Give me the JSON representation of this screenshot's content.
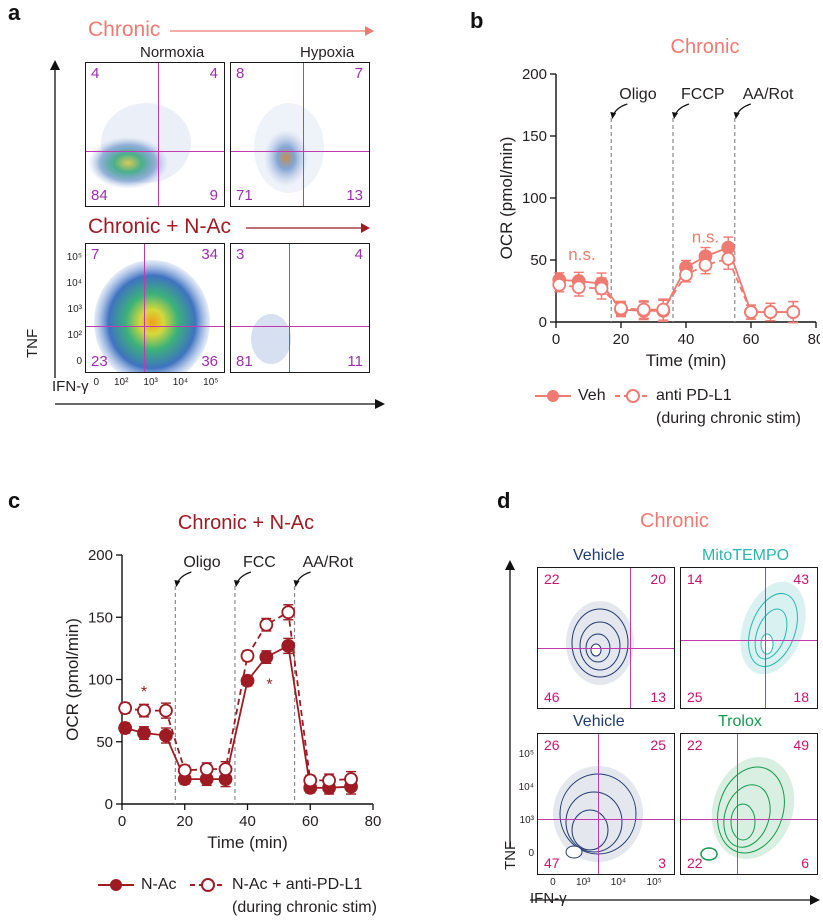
{
  "panels": {
    "a": {
      "letter": "a",
      "title_top": "Chronic",
      "title_bottom": "Chronic + N-Ac",
      "col_normoxia": "Normoxia",
      "col_hypoxia": "Hypoxia",
      "y_axis": "TNF",
      "x_axis": "IFN-γ",
      "ticks_y": [
        "10⁵",
        "10⁴",
        "10³",
        "10²",
        "0"
      ],
      "ticks_x": [
        "0",
        "10²",
        "10³",
        "10⁴",
        "10⁵"
      ],
      "plots": [
        {
          "name": "chronic-normoxia",
          "q": [
            "4",
            "4",
            "84",
            "9"
          ]
        },
        {
          "name": "chronic-hypoxia",
          "q": [
            "8",
            "7",
            "71",
            "13"
          ]
        },
        {
          "name": "nac-normoxia",
          "q": [
            "7",
            "34",
            "23",
            "36"
          ]
        },
        {
          "name": "nac-hypoxia",
          "q": [
            "3",
            "4",
            "81",
            "11"
          ]
        }
      ]
    },
    "b": {
      "letter": "b",
      "ns1": "n.s.",
      "ns2": "n.s.",
      "legend_veh": "Veh",
      "legend_pdl1": "anti PD-L1",
      "legend_pdl1_sub": "(during chronic stim)"
    },
    "c": {
      "letter": "c",
      "star1": "*",
      "star2": "*",
      "legend_nac": "N-Ac",
      "legend_nac_pdl1": "N-Ac + anti-PD-L1",
      "legend_nac_pdl1_sub": "(during chronic stim)"
    },
    "d": {
      "letter": "d",
      "title": "Chronic",
      "y_axis": "TNF",
      "x_axis": "IFN-γ",
      "ticks_y": [
        "10⁵",
        "10⁴",
        "10³",
        "0"
      ],
      "ticks_x": [
        "0",
        "10³",
        "10⁴",
        "10⁵"
      ],
      "plots": [
        {
          "name": "vehicle-1",
          "label": "Vehicle",
          "color": "#1f3a6e",
          "q": [
            "22",
            "20",
            "46",
            "13"
          ]
        },
        {
          "name": "mitotempo",
          "label": "MitoTEMPO",
          "color": "#2bb5b0",
          "q": [
            "14",
            "43",
            "25",
            "18"
          ]
        },
        {
          "name": "vehicle-2",
          "label": "Vehicle",
          "color": "#1f3a6e",
          "q": [
            "26",
            "25",
            "47",
            "3"
          ]
        },
        {
          "name": "trolox",
          "label": "Trolox",
          "color": "#149a4a",
          "q": [
            "22",
            "49",
            "22",
            "6"
          ]
        }
      ]
    }
  },
  "colors": {
    "chronic": "#ef7a72",
    "nac": "#9e1b24",
    "quadrant": "#c33ab0"
  },
  "chart_data": [
    {
      "type": "line",
      "panel": "b",
      "title": "Chronic",
      "xlabel": "Time (min)",
      "ylabel": "OCR (pmol/min)",
      "xlim": [
        0,
        80
      ],
      "ylim": [
        0,
        200
      ],
      "xticks": [
        0,
        20,
        40,
        60,
        80
      ],
      "yticks": [
        0,
        50,
        100,
        150,
        200
      ],
      "annotations": [
        {
          "label": "Oligo",
          "x": 17
        },
        {
          "label": "FCCP",
          "x": 36
        },
        {
          "label": "AA/Rot",
          "x": 55
        }
      ],
      "x": [
        1,
        7,
        14,
        20,
        27,
        33,
        40,
        46,
        53,
        60,
        66,
        73
      ],
      "series": [
        {
          "name": "Veh",
          "style": "solid-filled",
          "values": [
            34,
            33,
            31,
            10,
            9,
            9,
            44,
            53,
            60,
            8,
            8,
            8
          ]
        },
        {
          "name": "anti PD-L1 (during chronic stim)",
          "style": "dashed-open",
          "values": [
            30,
            28,
            27,
            11,
            10,
            10,
            38,
            46,
            51,
            8,
            8,
            8
          ]
        }
      ]
    },
    {
      "type": "line",
      "panel": "c",
      "title": "Chronic + N-Ac",
      "xlabel": "Time (min)",
      "ylabel": "OCR (pmol/min)",
      "xlim": [
        0,
        80
      ],
      "ylim": [
        0,
        200
      ],
      "xticks": [
        0,
        20,
        40,
        60,
        80
      ],
      "yticks": [
        0,
        50,
        100,
        150,
        200
      ],
      "annotations": [
        {
          "label": "Oligo",
          "x": 17
        },
        {
          "label": "FCC",
          "x": 36
        },
        {
          "label": "AA/Rot",
          "x": 55
        }
      ],
      "x": [
        1,
        7,
        14,
        20,
        27,
        33,
        40,
        46,
        53,
        60,
        66,
        73
      ],
      "series": [
        {
          "name": "N-Ac",
          "style": "solid-filled",
          "values": [
            61,
            57,
            55,
            20,
            20,
            20,
            99,
            118,
            127,
            13,
            13,
            14
          ]
        },
        {
          "name": "N-Ac + anti-PD-L1 (during chronic stim)",
          "style": "dashed-open",
          "values": [
            77,
            75,
            75,
            27,
            28,
            28,
            119,
            144,
            154,
            19,
            19,
            20
          ]
        }
      ]
    }
  ]
}
